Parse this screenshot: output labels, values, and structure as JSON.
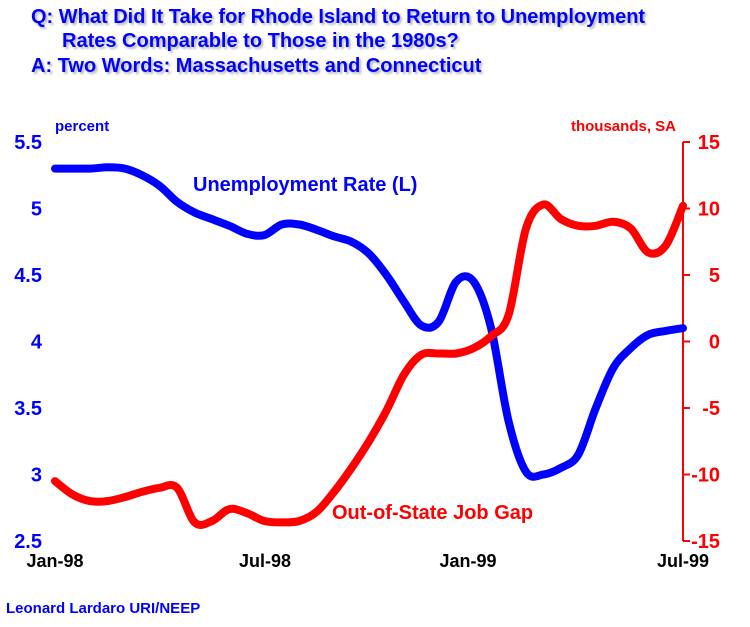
{
  "title": {
    "line1": "Q: What Did It Take for Rhode Island to Return to Unemployment",
    "line2": "Rates Comparable to Those in the 1980s?",
    "line3": "A: Two Words: Massachusetts and Connecticut"
  },
  "credit": "Leonard Lardaro  URI/NEEP",
  "colors": {
    "left_axis": "#0000ff",
    "right_axis": "#ff0000",
    "background": "#ffffff"
  },
  "chart_data": {
    "type": "line",
    "x_ticks": [
      "Jan-98",
      "Jul-98",
      "Jan-99",
      "Jul-99"
    ],
    "left_axis": {
      "unit_label": "percent",
      "ticks": [
        "5.5",
        "5",
        "4.5",
        "4",
        "3.5",
        "3",
        "2.5"
      ],
      "range": [
        2.5,
        5.5
      ]
    },
    "right_axis": {
      "unit_label": "thousands, SA",
      "ticks": [
        "15",
        "10",
        "5",
        "0",
        "-5",
        "-10",
        "-15"
      ],
      "range": [
        -15,
        15
      ]
    },
    "x_range": [
      0,
      18
    ],
    "grid": false,
    "series": [
      {
        "name": "Unemployment Rate (L)",
        "axis": "left",
        "color": "#0000ff",
        "x": [
          0,
          1,
          1.5,
          2,
          2.5,
          3,
          3.5,
          4,
          4.5,
          5,
          5.5,
          6,
          6.5,
          7,
          7.5,
          8,
          8.5,
          9,
          9.5,
          10,
          10.5,
          11,
          11.5,
          12,
          12.5,
          13,
          13.5,
          14,
          14.5,
          15,
          15.5,
          16,
          16.5,
          17,
          17.5,
          18
        ],
        "values": [
          5.3,
          5.3,
          5.31,
          5.3,
          5.25,
          5.17,
          5.05,
          4.97,
          4.92,
          4.87,
          4.81,
          4.8,
          4.88,
          4.88,
          4.84,
          4.79,
          4.75,
          4.66,
          4.5,
          4.3,
          4.12,
          4.15,
          4.45,
          4.45,
          4.1,
          3.4,
          3.02,
          3.0,
          3.05,
          3.15,
          3.5,
          3.8,
          3.95,
          4.05,
          4.08,
          4.1
        ]
      },
      {
        "name": "Out-of-State Job Gap",
        "axis": "right",
        "color": "#ff0000",
        "x": [
          0,
          0.5,
          1,
          1.5,
          2,
          2.5,
          3,
          3.5,
          4,
          4.5,
          5,
          5.5,
          6,
          6.5,
          7,
          7.5,
          8,
          8.5,
          9,
          9.5,
          10,
          10.5,
          11,
          11.5,
          12,
          12.5,
          13,
          13.5,
          14,
          14.5,
          15,
          15.5,
          16,
          16.5,
          17,
          17.5,
          18
        ],
        "values": [
          -10.5,
          -11.5,
          -12,
          -12,
          -11.7,
          -11.3,
          -11,
          -11,
          -13.6,
          -13.5,
          -12.6,
          -12.9,
          -13.5,
          -13.6,
          -13.5,
          -12.8,
          -11.3,
          -9.5,
          -7.5,
          -5.2,
          -2.5,
          -1,
          -0.9,
          -0.9,
          -0.5,
          0.4,
          2,
          8.5,
          10.3,
          9.2,
          8.7,
          8.7,
          9,
          8.5,
          6.7,
          7.2,
          10.2
        ]
      }
    ],
    "annotations": [
      {
        "text": "Unemployment Rate (L)",
        "series": "Unemployment Rate (L)"
      },
      {
        "text": "Out-of-State Job Gap",
        "series": "Out-of-State Job Gap"
      }
    ]
  }
}
